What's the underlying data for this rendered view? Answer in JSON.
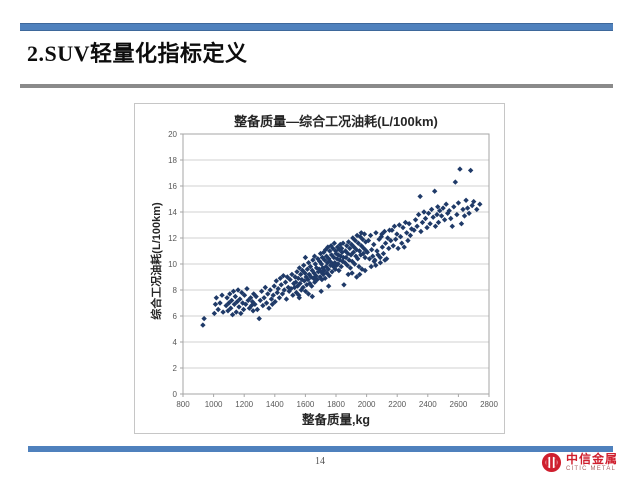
{
  "slide": {
    "title": "2.SUV轻量化指标定义",
    "page_number": "14",
    "accent_color": "#4f81bd",
    "divider_color": "#8a8a8a"
  },
  "logo": {
    "name": "中信金属",
    "subtitle": "CITIC METAL",
    "color": "#cf1f2e"
  },
  "chart_data": {
    "type": "scatter",
    "title": "整备质量—综合工况油耗(L/100km)",
    "xlabel": "整备质量,kg",
    "ylabel": "综合工况油耗(L/100km)",
    "xlim": [
      800,
      2800
    ],
    "ylim": [
      0,
      20
    ],
    "x_tick_step": 200,
    "y_tick_step": 2,
    "grid": "horizontal",
    "legend": "none",
    "marker": {
      "shape": "diamond",
      "color": "#1f3a68",
      "size": 5
    },
    "points": [
      [
        930,
        5.3
      ],
      [
        938,
        5.8
      ],
      [
        1005,
        6.2
      ],
      [
        1012,
        6.9
      ],
      [
        1018,
        7.4
      ],
      [
        1030,
        6.5
      ],
      [
        1042,
        7.0
      ],
      [
        1055,
        7.6
      ],
      [
        1062,
        6.3
      ],
      [
        1082,
        6.8
      ],
      [
        1088,
        7.4
      ],
      [
        1094,
        6.4
      ],
      [
        1100,
        7.0
      ],
      [
        1106,
        7.7
      ],
      [
        1112,
        6.6
      ],
      [
        1118,
        7.2
      ],
      [
        1124,
        6.1
      ],
      [
        1130,
        7.9
      ],
      [
        1136,
        6.9
      ],
      [
        1142,
        7.5
      ],
      [
        1148,
        6.3
      ],
      [
        1154,
        7.1
      ],
      [
        1160,
        8.0
      ],
      [
        1166,
        6.7
      ],
      [
        1172,
        7.3
      ],
      [
        1178,
        6.2
      ],
      [
        1184,
        7.8
      ],
      [
        1190,
        7.0
      ],
      [
        1196,
        6.5
      ],
      [
        1202,
        7.6
      ],
      [
        1210,
        6.9
      ],
      [
        1218,
        8.1
      ],
      [
        1226,
        7.2
      ],
      [
        1234,
        6.6
      ],
      [
        1242,
        7.4
      ],
      [
        1248,
        6.8
      ],
      [
        1254,
        7.1
      ],
      [
        1258,
        6.4
      ],
      [
        1262,
        7.7
      ],
      [
        1270,
        6.9
      ],
      [
        1278,
        7.5
      ],
      [
        1286,
        6.5
      ],
      [
        1298,
        5.8
      ],
      [
        1305,
        7.2
      ],
      [
        1314,
        7.9
      ],
      [
        1322,
        6.8
      ],
      [
        1330,
        7.4
      ],
      [
        1338,
        8.2
      ],
      [
        1346,
        7.0
      ],
      [
        1354,
        7.7
      ],
      [
        1362,
        6.6
      ],
      [
        1370,
        8.0
      ],
      [
        1378,
        7.3
      ],
      [
        1384,
        6.9
      ],
      [
        1390,
        7.6
      ],
      [
        1396,
        8.3
      ],
      [
        1402,
        7.1
      ],
      [
        1410,
        8.7
      ],
      [
        1416,
        7.8
      ],
      [
        1422,
        8.1
      ],
      [
        1430,
        7.4
      ],
      [
        1436,
        8.9
      ],
      [
        1442,
        8.4
      ],
      [
        1450,
        7.7
      ],
      [
        1456,
        9.1
      ],
      [
        1462,
        8.0
      ],
      [
        1470,
        8.6
      ],
      [
        1476,
        7.3
      ],
      [
        1482,
        9.0
      ],
      [
        1488,
        8.2
      ],
      [
        1494,
        7.9
      ],
      [
        1500,
        8.8
      ],
      [
        1506,
        8.1
      ],
      [
        1512,
        9.2
      ],
      [
        1518,
        7.6
      ],
      [
        1524,
        8.5
      ],
      [
        1530,
        8.2
      ],
      [
        1533,
        9.0
      ],
      [
        1537,
        8.6
      ],
      [
        1541,
        7.8
      ],
      [
        1545,
        9.4
      ],
      [
        1549,
        8.3
      ],
      [
        1553,
        8.9
      ],
      [
        1557,
        7.6
      ],
      [
        1561,
        9.7
      ],
      [
        1565,
        8.5
      ],
      [
        1569,
        9.2
      ],
      [
        1573,
        8.0
      ],
      [
        1577,
        8.8
      ],
      [
        1581,
        9.5
      ],
      [
        1585,
        8.2
      ],
      [
        1589,
        9.9
      ],
      [
        1593,
        8.7
      ],
      [
        1597,
        9.3
      ],
      [
        1601,
        7.9
      ],
      [
        1605,
        9.0
      ],
      [
        1609,
        8.4
      ],
      [
        1613,
        9.6
      ],
      [
        1617,
        8.8
      ],
      [
        1621,
        10.1
      ],
      [
        1625,
        9.2
      ],
      [
        1629,
        8.5
      ],
      [
        1633,
        9.8
      ],
      [
        1637,
        9.0
      ],
      [
        1641,
        8.3
      ],
      [
        1645,
        9.5
      ],
      [
        1649,
        10.3
      ],
      [
        1653,
        8.9
      ],
      [
        1657,
        9.3
      ],
      [
        1661,
        8.6
      ],
      [
        1665,
        10.0
      ],
      [
        1669,
        9.1
      ],
      [
        1673,
        9.7
      ],
      [
        1677,
        8.8
      ],
      [
        1681,
        10.4
      ],
      [
        1685,
        9.4
      ],
      [
        1645,
        7.5
      ],
      [
        1600,
        10.5
      ],
      [
        1560,
        7.4
      ],
      [
        1620,
        7.7
      ],
      [
        1660,
        10.6
      ],
      [
        1690,
        9.6
      ],
      [
        1693,
        10.2
      ],
      [
        1696,
        9.0
      ],
      [
        1699,
        10.8
      ],
      [
        1702,
        9.4
      ],
      [
        1705,
        10.0
      ],
      [
        1708,
        8.8
      ],
      [
        1711,
        10.5
      ],
      [
        1714,
        9.7
      ],
      [
        1717,
        9.2
      ],
      [
        1720,
        10.9
      ],
      [
        1723,
        9.5
      ],
      [
        1726,
        10.3
      ],
      [
        1729,
        8.9
      ],
      [
        1732,
        11.1
      ],
      [
        1735,
        9.8
      ],
      [
        1738,
        10.6
      ],
      [
        1741,
        9.3
      ],
      [
        1744,
        10.1
      ],
      [
        1747,
        11.3
      ],
      [
        1750,
        9.6
      ],
      [
        1753,
        10.4
      ],
      [
        1756,
        9.1
      ],
      [
        1759,
        11.0
      ],
      [
        1762,
        10.2
      ],
      [
        1765,
        9.9
      ],
      [
        1768,
        11.4
      ],
      [
        1771,
        10.7
      ],
      [
        1774,
        9.4
      ],
      [
        1777,
        10.0
      ],
      [
        1780,
        11.2
      ],
      [
        1783,
        9.8
      ],
      [
        1786,
        10.5
      ],
      [
        1789,
        11.6
      ],
      [
        1792,
        10.1
      ],
      [
        1795,
        9.6
      ],
      [
        1798,
        11.0
      ],
      [
        1801,
        10.8
      ],
      [
        1804,
        9.9
      ],
      [
        1807,
        10.4
      ],
      [
        1810,
        11.3
      ],
      [
        1813,
        10.0
      ],
      [
        1816,
        10.7
      ],
      [
        1819,
        9.5
      ],
      [
        1822,
        11.1
      ],
      [
        1825,
        10.3
      ],
      [
        1828,
        11.5
      ],
      [
        1831,
        10.6
      ],
      [
        1834,
        9.8
      ],
      [
        1837,
        11.2
      ],
      [
        1840,
        10.9
      ],
      [
        1843,
        10.2
      ],
      [
        1846,
        11.6
      ],
      [
        1849,
        10.5
      ],
      [
        1852,
        8.4
      ],
      [
        1703,
        7.9
      ],
      [
        1752,
        8.3
      ],
      [
        1858,
        10.1
      ],
      [
        1862,
        11.0
      ],
      [
        1866,
        10.5
      ],
      [
        1870,
        11.4
      ],
      [
        1874,
        9.9
      ],
      [
        1878,
        10.8
      ],
      [
        1882,
        11.7
      ],
      [
        1886,
        10.3
      ],
      [
        1890,
        11.2
      ],
      [
        1894,
        9.7
      ],
      [
        1898,
        10.7
      ],
      [
        1902,
        11.5
      ],
      [
        1906,
        10.2
      ],
      [
        1910,
        12.0
      ],
      [
        1914,
        10.9
      ],
      [
        1918,
        11.3
      ],
      [
        1922,
        10.0
      ],
      [
        1926,
        11.8
      ],
      [
        1930,
        10.6
      ],
      [
        1934,
        11.1
      ],
      [
        1938,
        12.2
      ],
      [
        1942,
        10.4
      ],
      [
        1946,
        11.6
      ],
      [
        1950,
        9.8
      ],
      [
        1954,
        11.0
      ],
      [
        1958,
        12.1
      ],
      [
        1962,
        10.7
      ],
      [
        1966,
        11.4
      ],
      [
        1970,
        9.6
      ],
      [
        1974,
        11.9
      ],
      [
        1978,
        10.8
      ],
      [
        1982,
        11.2
      ],
      [
        1986,
        12.3
      ],
      [
        1990,
        10.5
      ],
      [
        1994,
        11.7
      ],
      [
        1998,
        11.0
      ],
      [
        1905,
        9.3
      ],
      [
        1955,
        9.2
      ],
      [
        1935,
        9.0
      ],
      [
        1880,
        9.2
      ],
      [
        1990,
        9.5
      ],
      [
        1965,
        12.4
      ],
      [
        2005,
        10.9
      ],
      [
        2012,
        11.8
      ],
      [
        2019,
        10.4
      ],
      [
        2026,
        12.2
      ],
      [
        2033,
        11.1
      ],
      [
        2040,
        10.6
      ],
      [
        2047,
        11.5
      ],
      [
        2054,
        10.3
      ],
      [
        2061,
        12.4
      ],
      [
        2068,
        11.0
      ],
      [
        2075,
        10.7
      ],
      [
        2082,
        11.9
      ],
      [
        2089,
        10.5
      ],
      [
        2096,
        12.1
      ],
      [
        2103,
        11.3
      ],
      [
        2110,
        10.8
      ],
      [
        2117,
        12.5
      ],
      [
        2124,
        11.6
      ],
      [
        2131,
        10.4
      ],
      [
        2138,
        12.0
      ],
      [
        2145,
        11.2
      ],
      [
        2150,
        12.6
      ],
      [
        2050,
        10.2
      ],
      [
        2090,
        10.1
      ],
      [
        2120,
        10.3
      ],
      [
        2060,
        9.9
      ],
      [
        2030,
        9.8
      ],
      [
        2100,
        12.3
      ],
      [
        2158,
        11.8
      ],
      [
        2166,
        12.6
      ],
      [
        2174,
        11.4
      ],
      [
        2182,
        12.9
      ],
      [
        2190,
        11.9
      ],
      [
        2198,
        12.3
      ],
      [
        2206,
        11.2
      ],
      [
        2214,
        13.0
      ],
      [
        2222,
        12.1
      ],
      [
        2230,
        11.6
      ],
      [
        2238,
        12.8
      ],
      [
        2246,
        11.3
      ],
      [
        2254,
        13.2
      ],
      [
        2262,
        12.4
      ],
      [
        2270,
        11.8
      ],
      [
        2278,
        13.1
      ],
      [
        2286,
        12.2
      ],
      [
        2294,
        12.7
      ],
      [
        2310,
        12.6
      ],
      [
        2320,
        13.4
      ],
      [
        2330,
        12.9
      ],
      [
        2340,
        13.8
      ],
      [
        2350,
        15.2
      ],
      [
        2355,
        12.5
      ],
      [
        2365,
        13.2
      ],
      [
        2375,
        14.0
      ],
      [
        2385,
        13.5
      ],
      [
        2395,
        12.8
      ],
      [
        2405,
        13.9
      ],
      [
        2415,
        13.1
      ],
      [
        2425,
        14.2
      ],
      [
        2435,
        13.6
      ],
      [
        2445,
        15.6
      ],
      [
        2450,
        12.9
      ],
      [
        2460,
        13.8
      ],
      [
        2465,
        14.4
      ],
      [
        2470,
        13.2
      ],
      [
        2478,
        14.1
      ],
      [
        2490,
        13.7
      ],
      [
        2500,
        14.3
      ],
      [
        2510,
        13.4
      ],
      [
        2520,
        14.6
      ],
      [
        2530,
        13.9
      ],
      [
        2540,
        14.1
      ],
      [
        2550,
        13.5
      ],
      [
        2560,
        12.9
      ],
      [
        2570,
        14.4
      ],
      [
        2580,
        16.3
      ],
      [
        2590,
        13.8
      ],
      [
        2600,
        14.7
      ],
      [
        2610,
        17.3
      ],
      [
        2620,
        13.1
      ],
      [
        2630,
        14.2
      ],
      [
        2640,
        13.7
      ],
      [
        2650,
        14.9
      ],
      [
        2660,
        14.3
      ],
      [
        2670,
        13.9
      ],
      [
        2680,
        17.2
      ],
      [
        2690,
        14.5
      ],
      [
        2700,
        14.8
      ],
      [
        2720,
        14.2
      ],
      [
        2740,
        14.6
      ]
    ]
  }
}
